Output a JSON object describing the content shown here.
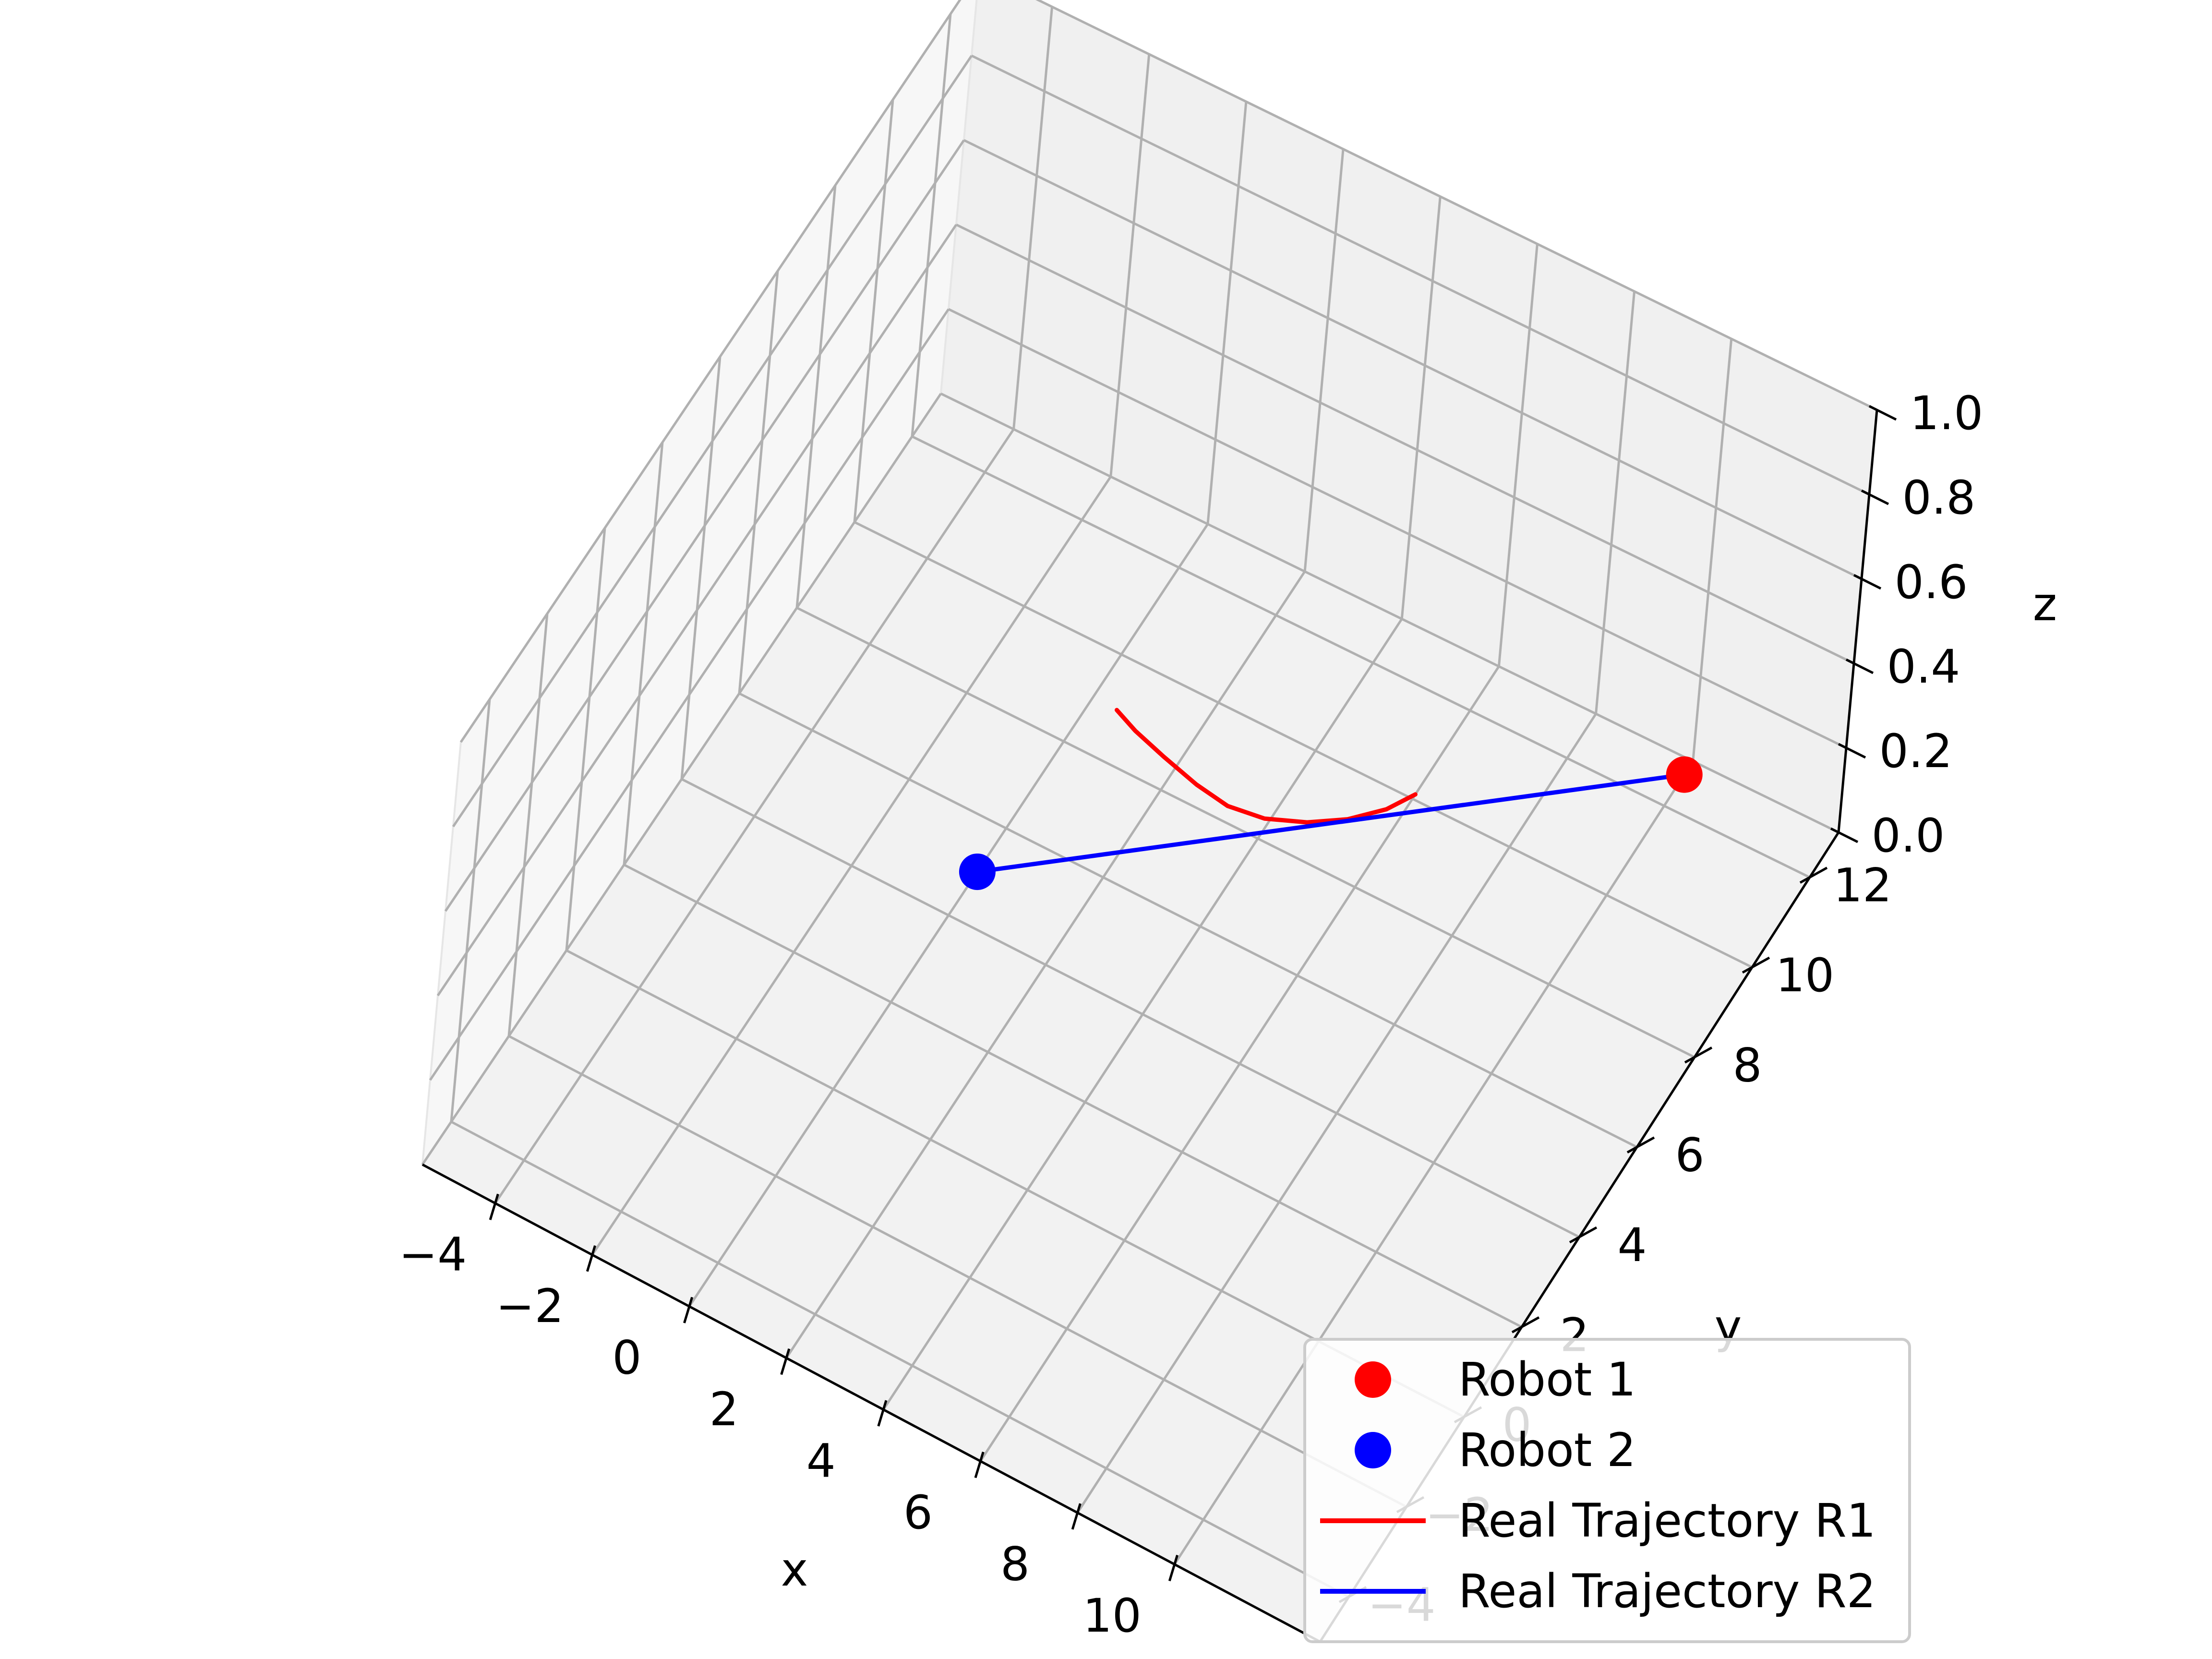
{
  "chart_data": {
    "type": "line3d",
    "xlabel": "x",
    "ylabel": "y",
    "zlabel": "z",
    "x_ticks": [
      "−4",
      "−2",
      "0",
      "2",
      "4",
      "6",
      "8",
      "10"
    ],
    "y_ticks": [
      "−4",
      "−2",
      "0",
      "2",
      "4",
      "6",
      "8",
      "10",
      "12"
    ],
    "z_ticks": [
      "0.0",
      "0.2",
      "0.4",
      "0.6",
      "0.8",
      "1.0"
    ],
    "xlim": [
      -5.5,
      13
    ],
    "ylim": [
      -5,
      13
    ],
    "zlim": [
      0,
      1
    ],
    "grid": true,
    "legend_position": "bottom-right",
    "colors": {
      "robot1": "#ff0000",
      "robot2": "#0000ff",
      "grid": "#b0b0b0",
      "pane": "#f2f2f2"
    },
    "legend": {
      "robot1": "Robot 1",
      "robot2": "Robot 2",
      "traj1": "Real Trajectory R1",
      "traj2": "Real Trajectory R2"
    },
    "series": [
      {
        "name": "Robot 1",
        "kind": "marker",
        "color": "#ff0000",
        "x": 10,
        "y": 12.7,
        "z": 0
      },
      {
        "name": "Robot 2",
        "kind": "marker",
        "color": "#0000ff",
        "x": 0,
        "y": 5,
        "z": 0
      },
      {
        "name": "Real Trajectory R1",
        "kind": "line",
        "color": "#ff0000",
        "x": [
          0.5,
          1.0,
          1.7,
          2.5,
          3.2,
          3.9,
          4.6,
          5.2,
          5.7,
          6.0
        ],
        "y": [
          9.0,
          8.8,
          8.6,
          8.4,
          8.3,
          8.4,
          8.7,
          9.1,
          9.6,
          10.1
        ],
        "z": [
          0,
          0,
          0,
          0,
          0,
          0,
          0,
          0,
          0,
          0
        ]
      },
      {
        "name": "Real Trajectory R2",
        "kind": "line",
        "color": "#0000ff",
        "x": [
          0,
          10
        ],
        "y": [
          5,
          12.7
        ],
        "z": [
          0,
          0
        ]
      }
    ]
  }
}
